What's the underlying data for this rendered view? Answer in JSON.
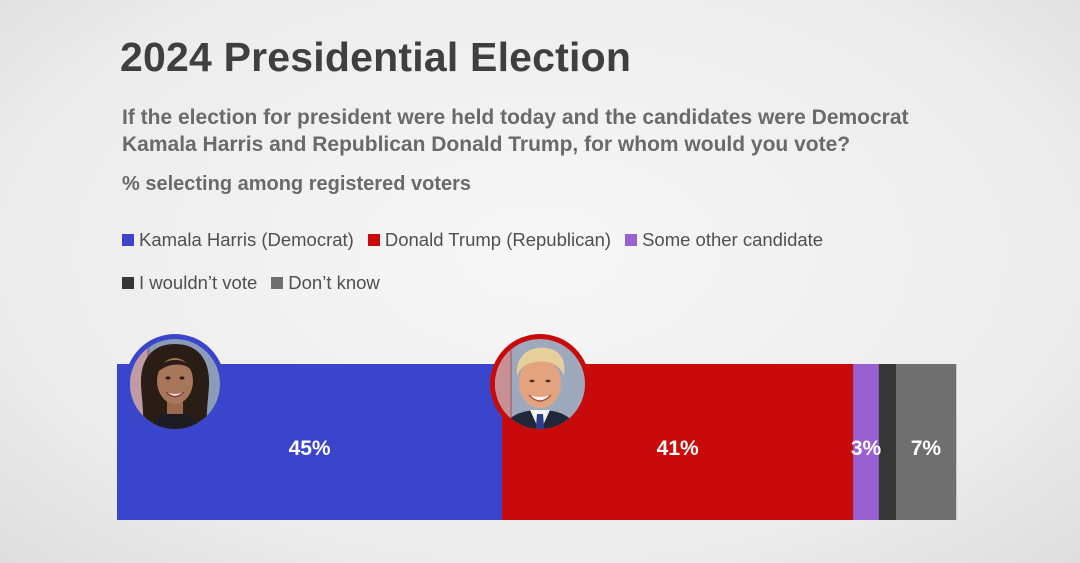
{
  "header": {
    "title": "2024 Presidential Election",
    "question_line1": "If the election for president were held today and the candidates were Democrat",
    "question_line2": "Kamala Harris and Republican Donald Trump, for whom would you vote?",
    "subtitle": "% selecting among registered voters"
  },
  "chart_data": {
    "type": "bar",
    "orientation": "horizontal-stacked",
    "title": "2024 Presidential Election",
    "xlabel": "",
    "ylabel": "",
    "xlim": [
      0,
      100
    ],
    "grid": false,
    "legend": "top",
    "categories": [
      "Registered voters"
    ],
    "series": [
      {
        "name": "Kamala Harris (Democrat)",
        "values": [
          45
        ],
        "label": "45%",
        "color": "#3a45cc"
      },
      {
        "name": "Donald Trump (Republican)",
        "values": [
          41
        ],
        "label": "41%",
        "color": "#c90a0a"
      },
      {
        "name": "Some other candidate",
        "values": [
          3
        ],
        "label": "3%",
        "color": "#9a5fd0"
      },
      {
        "name": "I wouldn’t vote",
        "values": [
          2
        ],
        "label": "",
        "color": "#363636"
      },
      {
        "name": "Don’t know",
        "values": [
          7
        ],
        "label": "7%",
        "color": "#6f6f6f"
      }
    ]
  }
}
